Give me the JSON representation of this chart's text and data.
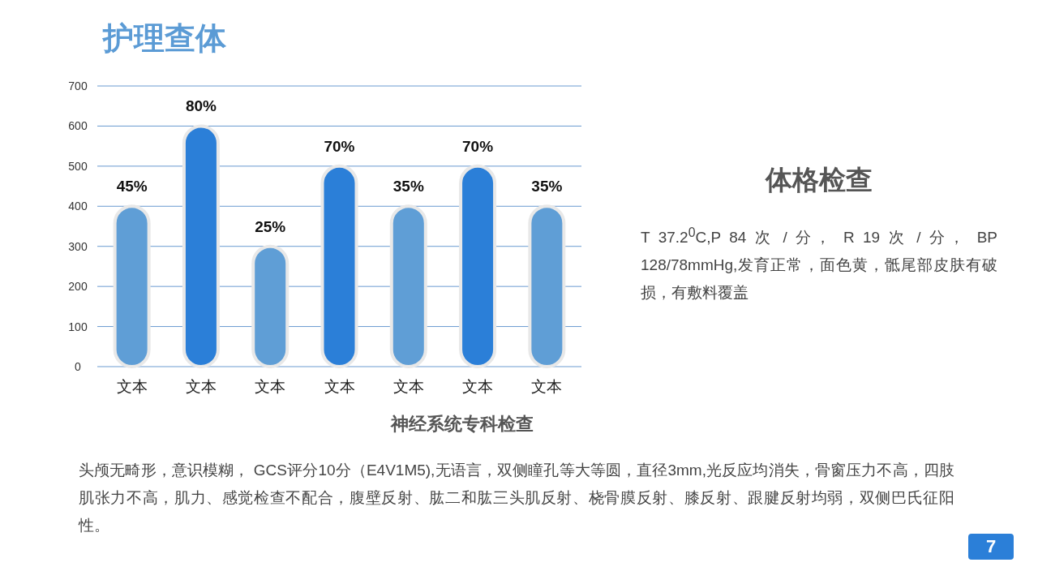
{
  "chart_data": {
    "type": "bar",
    "title": "护理查体",
    "categories": [
      "文本",
      "文本",
      "文本",
      "文本",
      "文本",
      "文本",
      "文本"
    ],
    "values": [
      400,
      600,
      300,
      500,
      400,
      500,
      400
    ],
    "colors": [
      "#5f9ed6",
      "#2b7fd8",
      "#5f9ed6",
      "#2b7fd8",
      "#5f9ed6",
      "#2b7fd8",
      "#5f9ed6"
    ],
    "ylim": [
      0,
      700
    ],
    "yticks": [
      0,
      100,
      200,
      300,
      400,
      500,
      600,
      700
    ],
    "grid": "y",
    "annotations": [
      {
        "text": "45%",
        "y": 400
      },
      {
        "text": "80%",
        "y": 600
      },
      {
        "text": "25%",
        "y": 300
      },
      {
        "text": "70%",
        "y": 500
      },
      {
        "text": "35%",
        "y": 400
      },
      {
        "text": "70%",
        "y": 500
      },
      {
        "text": "35%",
        "y": 400
      },
      "体格检查",
      "T 37.2$^{0}$C,P 84 次 / 分， R 19 次 / 分， BP 128/78mmHg,发育正常，面色黄，骶尾部皮肤有破损，有敷料覆盖",
      "神经系统专科检查",
      "头颅无畸形，意识模糊， GCS评分10分（E4V1M5),无语言，双侧瞳孔等大等圆，直径3mm,光反应均消失，骨窗压力不高，四肢肌张力不高，肌力、感觉检查不配合，腹壁反射、肱二和肱三头肌反射、桡骨膜反射、膝反射、跟腱反射均弱，双侧巴氏征阳性。",
      "7"
    ]
  }
}
